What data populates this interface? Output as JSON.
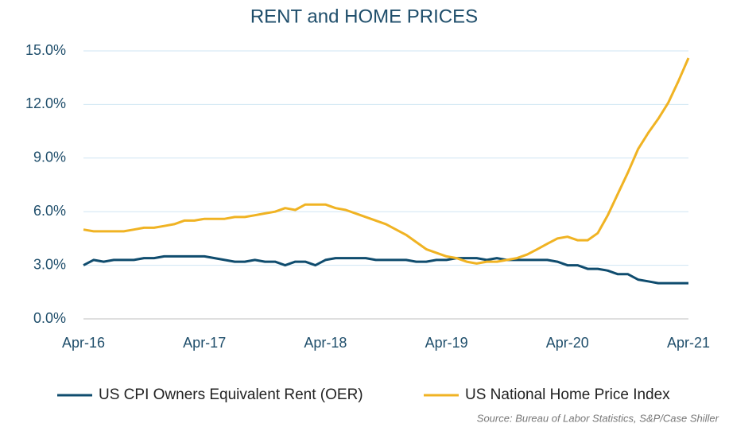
{
  "chart_data": {
    "type": "line",
    "title": "RENT and HOME PRICES",
    "categories": [
      "Apr-16",
      null,
      null,
      null,
      null,
      null,
      null,
      null,
      null,
      null,
      null,
      null,
      "Apr-17",
      null,
      null,
      null,
      null,
      null,
      null,
      null,
      null,
      null,
      null,
      null,
      "Apr-18",
      null,
      null,
      null,
      null,
      null,
      null,
      null,
      null,
      null,
      null,
      null,
      "Apr-19",
      null,
      null,
      null,
      null,
      null,
      null,
      null,
      null,
      null,
      null,
      null,
      "Apr-20",
      null,
      null,
      null,
      null,
      null,
      null,
      null,
      null,
      null,
      null,
      null,
      "Apr-21"
    ],
    "series": [
      {
        "name": "US CPI Owners Equivalent Rent (OER)",
        "color": "#0f4c6e",
        "values": [
          3.0,
          3.3,
          3.2,
          3.3,
          3.3,
          3.3,
          3.4,
          3.4,
          3.5,
          3.5,
          3.5,
          3.5,
          3.5,
          3.4,
          3.3,
          3.2,
          3.2,
          3.3,
          3.2,
          3.2,
          3.0,
          3.2,
          3.2,
          3.0,
          3.3,
          3.4,
          3.4,
          3.4,
          3.4,
          3.3,
          3.3,
          3.3,
          3.3,
          3.2,
          3.2,
          3.3,
          3.3,
          3.4,
          3.4,
          3.4,
          3.3,
          3.4,
          3.3,
          3.3,
          3.3,
          3.3,
          3.3,
          3.2,
          3.0,
          3.0,
          2.8,
          2.8,
          2.7,
          2.5,
          2.5,
          2.2,
          2.1,
          2.0,
          2.0,
          2.0,
          2.0
        ]
      },
      {
        "name": "US National Home Price Index",
        "color": "#f0b323",
        "values": [
          5.0,
          4.9,
          4.9,
          4.9,
          4.9,
          5.0,
          5.1,
          5.1,
          5.2,
          5.3,
          5.5,
          5.5,
          5.6,
          5.6,
          5.6,
          5.7,
          5.7,
          5.8,
          5.9,
          6.0,
          6.2,
          6.1,
          6.4,
          6.4,
          6.4,
          6.2,
          6.1,
          5.9,
          5.7,
          5.5,
          5.3,
          5.0,
          4.7,
          4.3,
          3.9,
          3.7,
          3.5,
          3.4,
          3.2,
          3.1,
          3.2,
          3.2,
          3.3,
          3.4,
          3.6,
          3.9,
          4.2,
          4.5,
          4.6,
          4.4,
          4.4,
          4.8,
          5.8,
          7.0,
          8.2,
          9.5,
          10.4,
          11.2,
          12.1,
          13.3,
          14.6
        ]
      }
    ],
    "ylim": [
      0,
      15
    ],
    "yticks": [
      {
        "value": 0,
        "label": "0.0%"
      },
      {
        "value": 3,
        "label": "3.0%"
      },
      {
        "value": 6,
        "label": "6.0%"
      },
      {
        "value": 9,
        "label": "9.0%"
      },
      {
        "value": 12,
        "label": "12.0%"
      },
      {
        "value": 15,
        "label": "15.0%"
      }
    ],
    "grid": true,
    "legend": "bottom",
    "source": "Source: Bureau of Labor Statistics, S&P/Case Shiller"
  }
}
